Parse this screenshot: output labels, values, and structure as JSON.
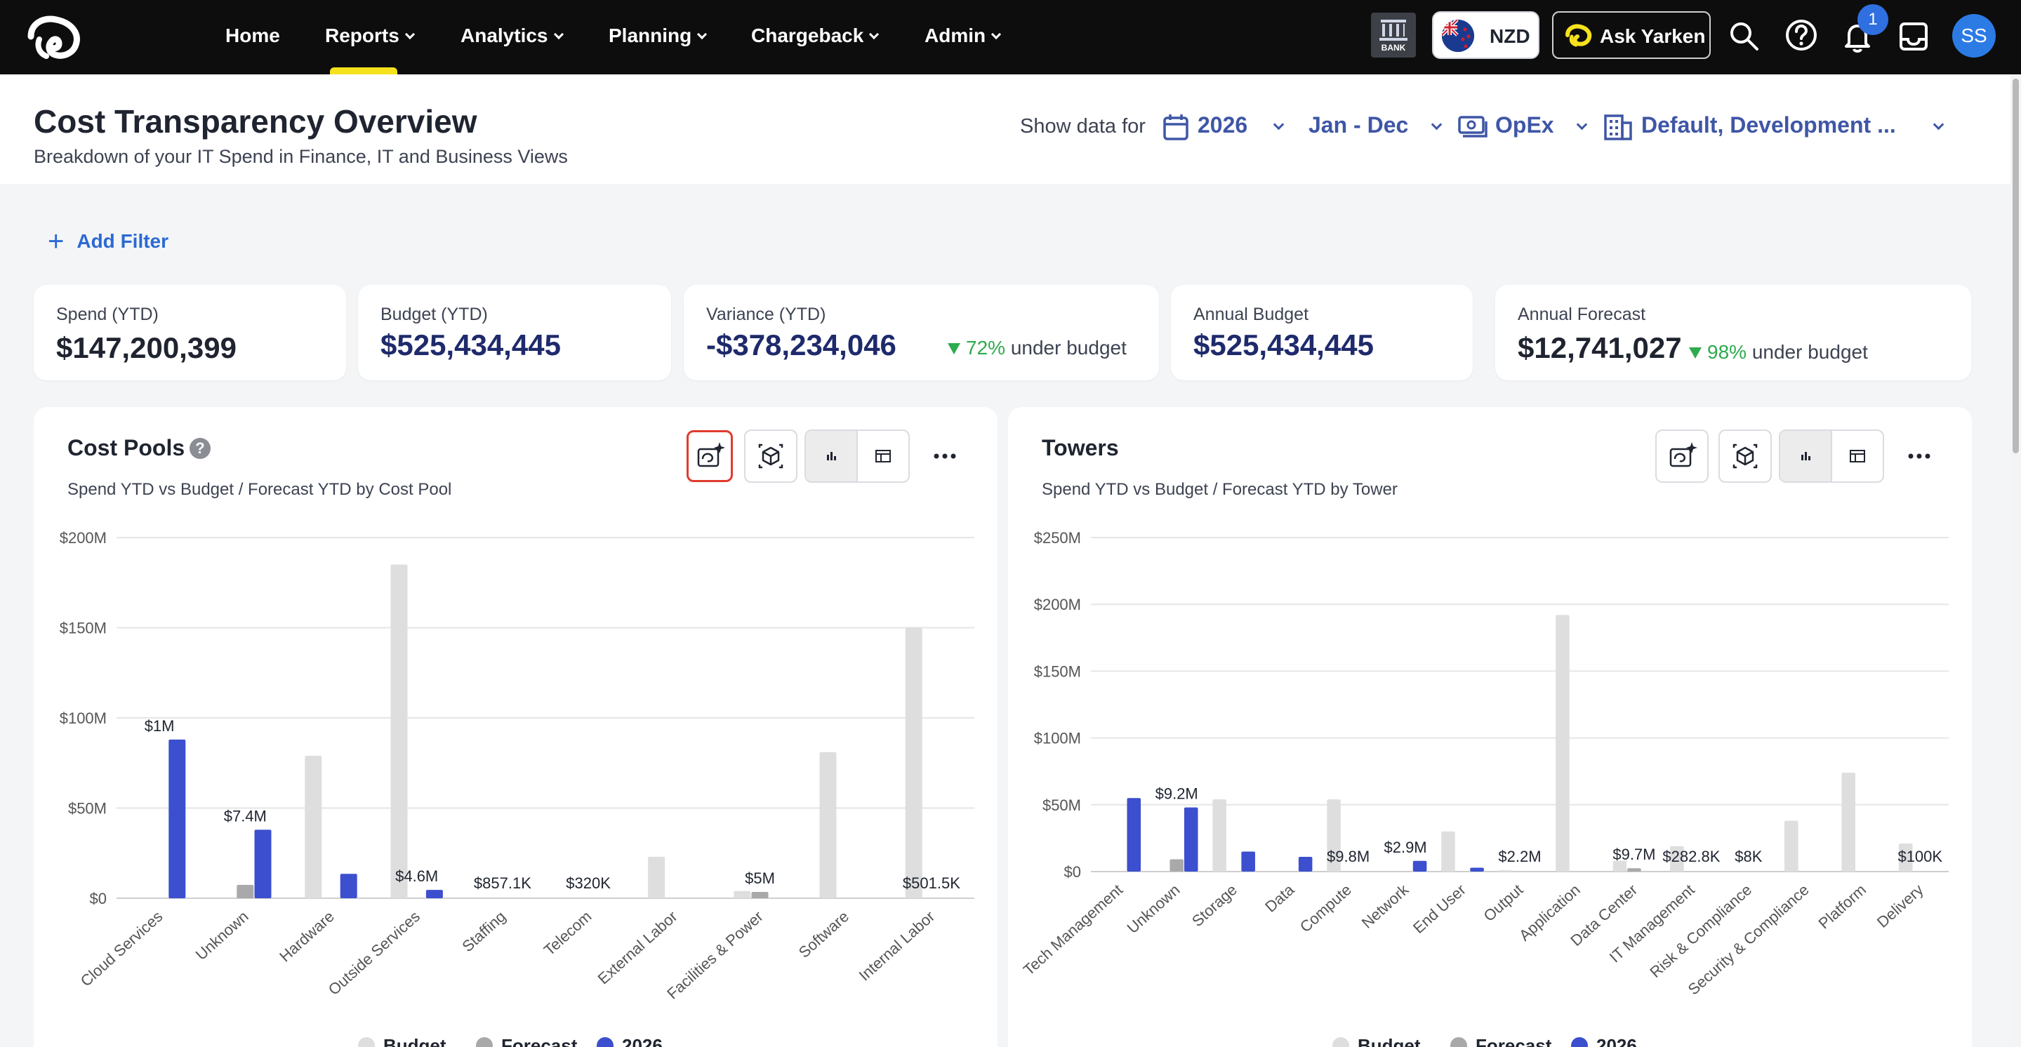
{
  "nav": {
    "items": [
      {
        "label": "Home",
        "dropdown": false
      },
      {
        "label": "Reports",
        "dropdown": true
      },
      {
        "label": "Analytics",
        "dropdown": true
      },
      {
        "label": "Planning",
        "dropdown": true
      },
      {
        "label": "Chargeback",
        "dropdown": true
      },
      {
        "label": "Admin",
        "dropdown": true
      }
    ],
    "active": "Reports",
    "bank_label": "BANK",
    "currency": "NZD",
    "ask_label": "Ask Yarken",
    "notification_count": "1",
    "avatar_initials": "SS"
  },
  "header": {
    "title": "Cost Transparency Overview",
    "subtitle": "Breakdown of your IT Spend in Finance, IT and Business Views",
    "show_data_label": "Show data for",
    "year": "2026",
    "period": "Jan - Dec",
    "spend_type": "OpEx",
    "entity": "Default, Development ..."
  },
  "filter": {
    "add_label": "Add Filter"
  },
  "kpis": {
    "spend": {
      "label": "Spend (YTD)",
      "value": "$147,200,399"
    },
    "budget": {
      "label": "Budget (YTD)",
      "value": "$525,434,445"
    },
    "variance": {
      "label": "Variance (YTD)",
      "value": "-$378,234,046",
      "pct": "72%",
      "note": "under budget"
    },
    "annual_budget": {
      "label": "Annual Budget",
      "value": "$525,434,445"
    },
    "annual_forecast": {
      "label": "Annual Forecast",
      "value": "$12,741,027",
      "pct": "98%",
      "note": "under budget"
    }
  },
  "colors": {
    "budget": "#dedede",
    "forecast": "#a9a9a9",
    "actual": "#3b4fcf",
    "positive": "#2eaa4f",
    "accent": "#3f56a6"
  },
  "panels": [
    {
      "title": "Cost Pools",
      "subtitle": "Spend YTD vs Budget / Forecast YTD by Cost Pool"
    },
    {
      "title": "Towers",
      "subtitle": "Spend YTD vs Budget / Forecast YTD by Tower"
    }
  ],
  "chart_data": [
    {
      "type": "bar",
      "title": "Cost Pools",
      "categories": [
        "Cloud Services",
        "Unknown",
        "Hardware",
        "Outside Services",
        "Staffing",
        "Telecom",
        "External Labor",
        "Facilities & Power",
        "Software",
        "Internal Labor"
      ],
      "series": [
        {
          "name": "Budget",
          "values": [
            0,
            0,
            79,
            185,
            0,
            0,
            23,
            4,
            81,
            150
          ]
        },
        {
          "name": "Forecast",
          "values": [
            0,
            7.4,
            0,
            0,
            0,
            0,
            0,
            3.5,
            0,
            0
          ]
        },
        {
          "name": "2026",
          "values": [
            88,
            38,
            13.5,
            4.6,
            0,
            0,
            0,
            0,
            0,
            0
          ]
        }
      ],
      "data_labels": [
        "$1M",
        "$7.4M",
        "",
        "$4.6M",
        "$857.1K",
        "$320K",
        "",
        "$5M",
        "",
        "$501.5K"
      ],
      "y_ticks": [
        "$0",
        "$50M",
        "$100M",
        "$150M",
        "$200M"
      ],
      "ylim": [
        0,
        200
      ],
      "legend": [
        "Budget",
        "Forecast",
        "2026"
      ],
      "legend_position": "bottom",
      "grid": true
    },
    {
      "type": "bar",
      "title": "Towers",
      "categories": [
        "Tech Management",
        "Unknown",
        "Storage",
        "Data",
        "Compute",
        "Network",
        "End User",
        "Output",
        "Application",
        "Data Center",
        "IT Management",
        "Risk & Compliance",
        "Security & Compliance",
        "Platform",
        "Delivery"
      ],
      "series": [
        {
          "name": "Budget",
          "values": [
            0,
            0,
            54,
            0,
            54,
            0,
            30,
            1,
            192,
            8,
            19,
            0,
            38,
            74,
            21
          ]
        },
        {
          "name": "Forecast",
          "values": [
            0,
            9.2,
            0,
            0,
            0,
            0,
            0,
            0,
            0,
            2.5,
            0,
            0,
            0,
            0,
            0
          ]
        },
        {
          "name": "2026",
          "values": [
            55,
            48,
            15,
            11,
            0,
            8,
            2.9,
            0,
            0,
            0,
            0,
            0,
            0,
            0,
            0
          ]
        }
      ],
      "data_labels": [
        "",
        "$9.2M",
        "",
        "",
        "$9.8M",
        "$2.9M",
        "",
        "$2.2M",
        "",
        "$9.7M",
        "$282.8K",
        "$8K",
        "",
        "",
        "$100K"
      ],
      "y_ticks": [
        "$0",
        "$50M",
        "$100M",
        "$150M",
        "$200M",
        "$250M"
      ],
      "ylim": [
        0,
        250
      ],
      "legend": [
        "Budget",
        "Forecast",
        "2026"
      ],
      "legend_position": "bottom",
      "grid": true
    }
  ]
}
